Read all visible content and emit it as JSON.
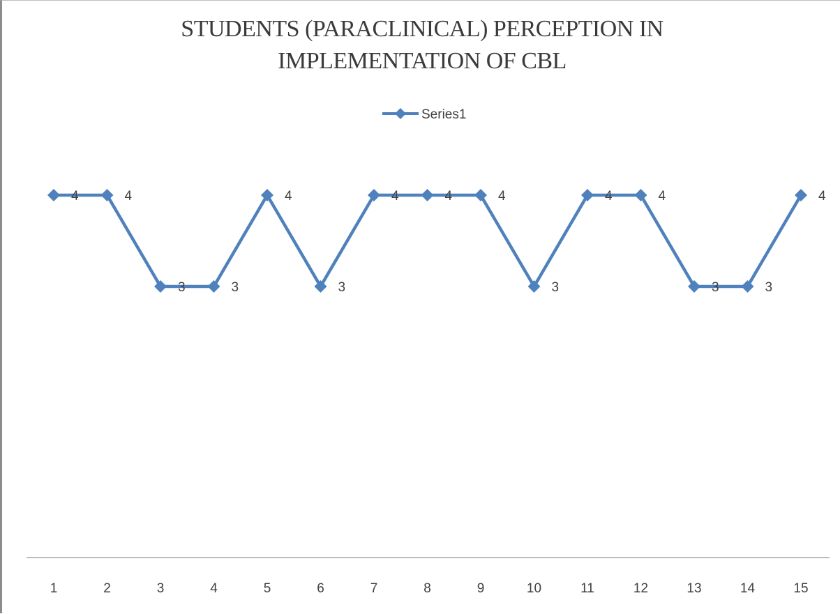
{
  "chart_data": {
    "type": "line",
    "title_lines": [
      "STUDENTS (PARACLINICAL) PERCEPTION IN",
      "IMPLEMENTATION OF CBL"
    ],
    "categories": [
      "1",
      "2",
      "3",
      "4",
      "5",
      "6",
      "7",
      "8",
      "9",
      "10",
      "11",
      "12",
      "13",
      "14",
      "15"
    ],
    "series": [
      {
        "name": "Series1",
        "values": [
          4,
          4,
          3,
          3,
          4,
          3,
          4,
          4,
          4,
          3,
          4,
          4,
          3,
          3,
          4
        ],
        "color": "#4f81bd",
        "marker": "diamond"
      }
    ],
    "data_labels": [
      "4",
      "4",
      "3",
      "3",
      "4",
      "3",
      "4",
      "4",
      "4",
      "3",
      "4",
      "4",
      "3",
      "3",
      "4"
    ],
    "legend": "top-center",
    "grid": false,
    "y_axis_visible": false,
    "ylim": [
      0,
      5
    ]
  }
}
